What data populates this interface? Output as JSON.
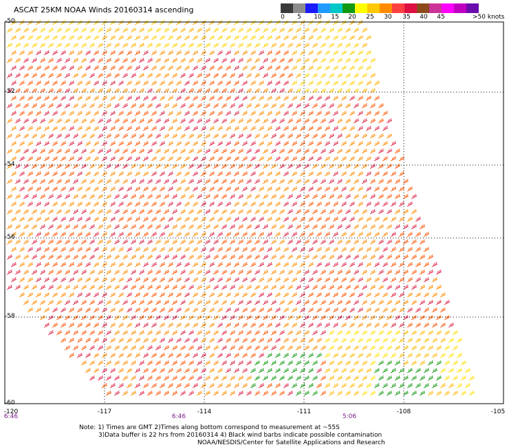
{
  "title": "ASCAT 25KM NOAA Winds 20160314 ascending",
  "colorbar": {
    "colors": [
      "#3a3a3a",
      "#8c8c8c",
      "#1a1aff",
      "#1f9bff",
      "#00c8c8",
      "#119911",
      "#ffff00",
      "#ffc800",
      "#ff8c00",
      "#ff4040",
      "#dd1040",
      "#8b4a1a",
      "#cc3399",
      "#ff00ff",
      "#c000c0",
      "#6a0dad"
    ],
    "tick_labels": [
      "0",
      "5",
      "10",
      "15",
      "20",
      "25",
      "30",
      "35",
      "40",
      "45",
      ">50 knots"
    ]
  },
  "lat_labels": [
    "-50",
    "-52",
    "-54",
    "-56",
    "-58",
    "-60"
  ],
  "lon_labels": [
    "-120",
    "-117",
    "-114",
    "-111",
    "-108",
    "-105"
  ],
  "time_labels": [
    "6:46",
    "6:46",
    "5:06"
  ],
  "notes": [
    "Note: 1) Times are GMT 2)Times along bottom correspond to measurement at ~55S",
    "3)Data buffer is 22 hrs from 20160314 4) Black wind barbs indicate possible contamination",
    "NOAA/NESDIS/Center for Satellite Applications and Research"
  ]
}
